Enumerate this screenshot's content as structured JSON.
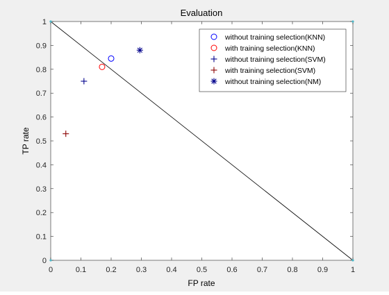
{
  "chart_data": {
    "type": "scatter",
    "title": "Evaluation",
    "xlabel": "FP rate",
    "ylabel": "TP rate",
    "xlim": [
      0,
      1
    ],
    "ylim": [
      0,
      1
    ],
    "xticks": [
      "0",
      "0.1",
      "0.2",
      "0.3",
      "0.4",
      "0.5",
      "0.6",
      "0.7",
      "0.8",
      "0.9",
      "1"
    ],
    "yticks": [
      "0",
      "0.1",
      "0.2",
      "0.3",
      "0.4",
      "0.5",
      "0.6",
      "0.7",
      "0.8",
      "0.9",
      "1"
    ],
    "grid": false,
    "legend_position": "top-right",
    "reference_line": {
      "from": [
        0,
        1
      ],
      "to": [
        1,
        0
      ],
      "color": "#000000"
    },
    "series": [
      {
        "name": "without training selection(KNN)",
        "marker": "circle",
        "color": "#0000ff",
        "x": [
          0.2
        ],
        "y": [
          0.845
        ]
      },
      {
        "name": "with training selection(KNN)",
        "marker": "circle",
        "color": "#ff0000",
        "x": [
          0.17
        ],
        "y": [
          0.81
        ]
      },
      {
        "name": "without training selection(SVM)",
        "marker": "plus",
        "color": "#00008b",
        "x": [
          0.11
        ],
        "y": [
          0.75
        ]
      },
      {
        "name": "with training selection(SVM)",
        "marker": "plus",
        "color": "#8b0000",
        "x": [
          0.05
        ],
        "y": [
          0.53
        ]
      },
      {
        "name": "without training selection(NM)",
        "marker": "asterisk",
        "color": "#00008b",
        "x": [
          0.295
        ],
        "y": [
          0.88
        ]
      }
    ]
  }
}
